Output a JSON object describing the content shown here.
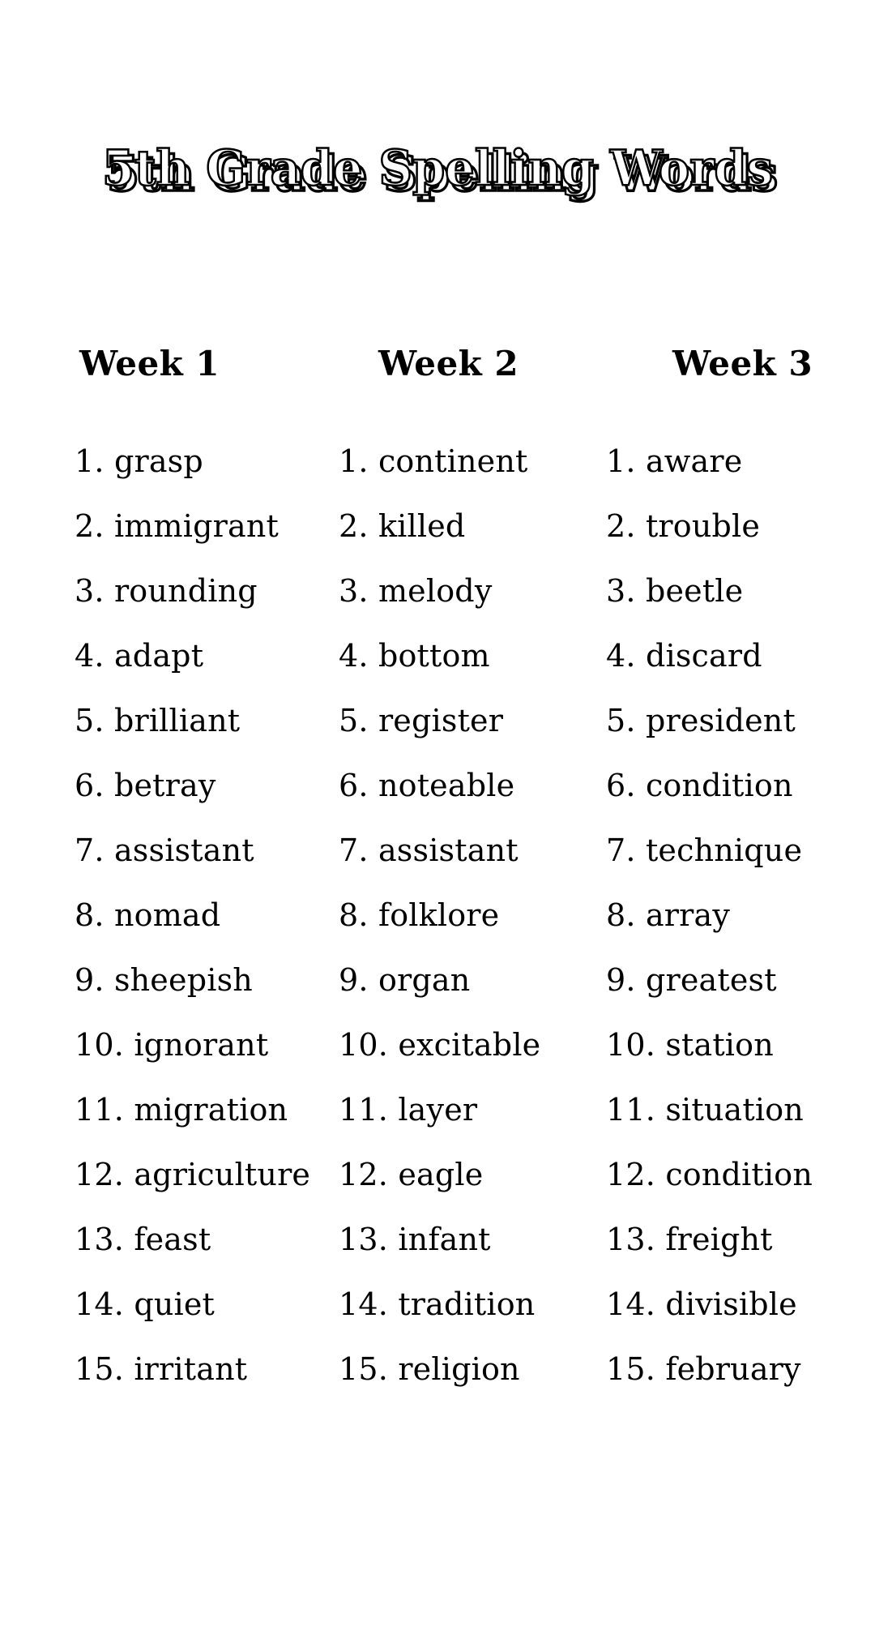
{
  "page_title": "5th Grade Spelling Words",
  "columns": [
    {
      "header": "Week 1",
      "words": [
        "grasp",
        "immigrant",
        "rounding",
        "adapt",
        "brilliant",
        "betray",
        "assistant",
        "nomad",
        "sheepish",
        "ignorant",
        "migration",
        "agriculture",
        "feast",
        "quiet",
        "irritant"
      ]
    },
    {
      "header": "Week 2",
      "words": [
        "continent",
        "killed",
        "melody",
        "bottom",
        "register",
        "noteable",
        "assistant",
        "folklore",
        "organ",
        "excitable",
        "layer",
        "eagle",
        "infant",
        "tradition",
        "religion"
      ]
    },
    {
      "header": "Week 3",
      "words": [
        "aware",
        "trouble",
        "beetle",
        "discard",
        "president",
        "condition",
        "technique",
        "array",
        "greatest",
        "station",
        "situation",
        "condition",
        "freight",
        "divisible",
        "february"
      ]
    }
  ],
  "colors": {
    "text": "#000000",
    "background": "#ffffff",
    "title_fill": "#ffffff",
    "title_outline": "#000000"
  }
}
